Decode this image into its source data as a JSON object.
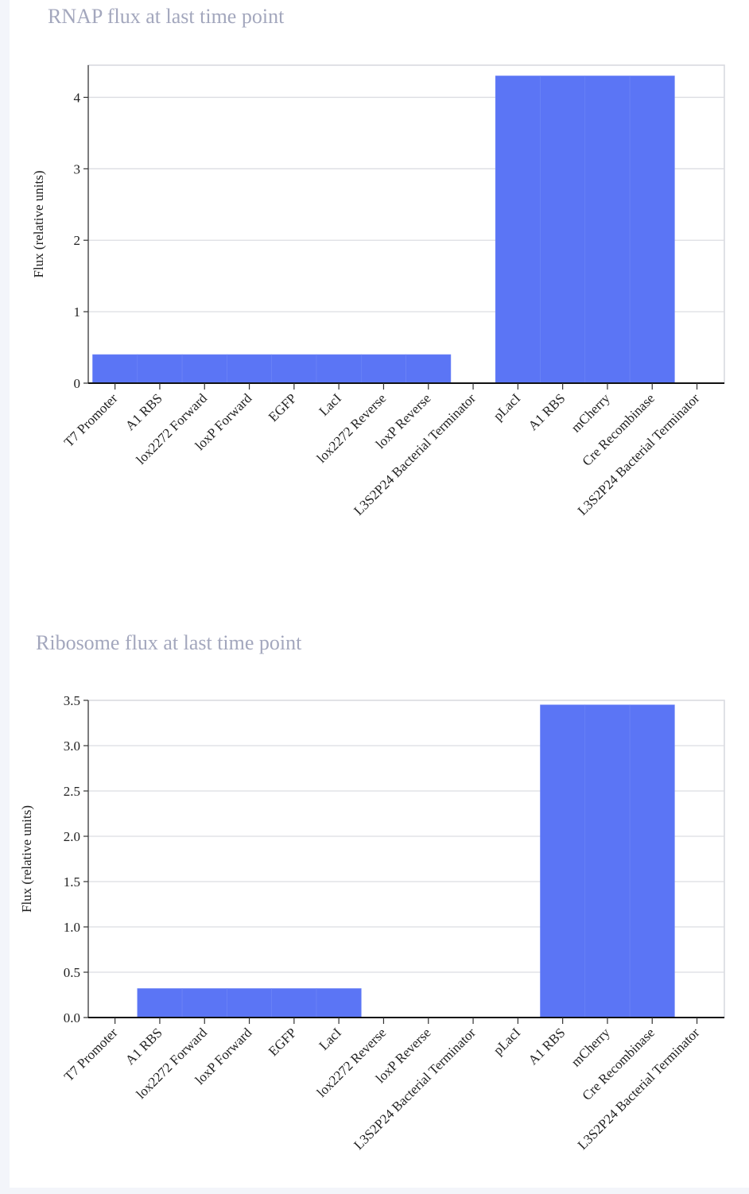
{
  "chart_data": [
    {
      "type": "bar",
      "title": "RNAP flux at last time point",
      "xlabel": "",
      "ylabel": "Flux (relative units)",
      "ylim": [
        0,
        4.45
      ],
      "yticks": [
        "0",
        "1",
        "2",
        "3",
        "4"
      ],
      "ytick_values": [
        0,
        1,
        2,
        3,
        4
      ],
      "grid": true,
      "color": "#5b75f5",
      "categories": [
        "T7 Promoter",
        "A1 RBS",
        "lox2272 Forward",
        "loxP Forward",
        "EGFP",
        "LacI",
        "lox2272 Reverse",
        "loxP Reverse",
        "L3S2P24 Bacterial Terminator",
        "pLacI",
        "A1 RBS",
        "mCherry",
        "Cre Recombinase",
        "L3S2P24 Bacterial Terminator"
      ],
      "values": [
        0.4,
        0.4,
        0.4,
        0.4,
        0.4,
        0.4,
        0.4,
        0.4,
        0,
        4.3,
        4.3,
        4.3,
        4.3,
        0
      ]
    },
    {
      "type": "bar",
      "title": "Ribosome flux at last time point",
      "xlabel": "",
      "ylabel": "Flux (relative units)",
      "ylim": [
        0,
        3.5
      ],
      "yticks": [
        "0.0",
        "0.5",
        "1.0",
        "1.5",
        "2.0",
        "2.5",
        "3.0",
        "3.5"
      ],
      "ytick_values": [
        0,
        0.5,
        1,
        1.5,
        2,
        2.5,
        3,
        3.5
      ],
      "grid": true,
      "color": "#5b75f5",
      "categories": [
        "T7 Promoter",
        "A1 RBS",
        "lox2272 Forward",
        "loxP Forward",
        "EGFP",
        "LacI",
        "lox2272 Reverse",
        "loxP Reverse",
        "L3S2P24 Bacterial Terminator",
        "pLacI",
        "A1 RBS",
        "mCherry",
        "Cre Recombinase",
        "L3S2P24 Bacterial Terminator"
      ],
      "values": [
        0,
        0.32,
        0.32,
        0.32,
        0.32,
        0.32,
        0,
        0,
        0,
        0,
        3.45,
        3.45,
        3.45,
        0
      ]
    }
  ]
}
